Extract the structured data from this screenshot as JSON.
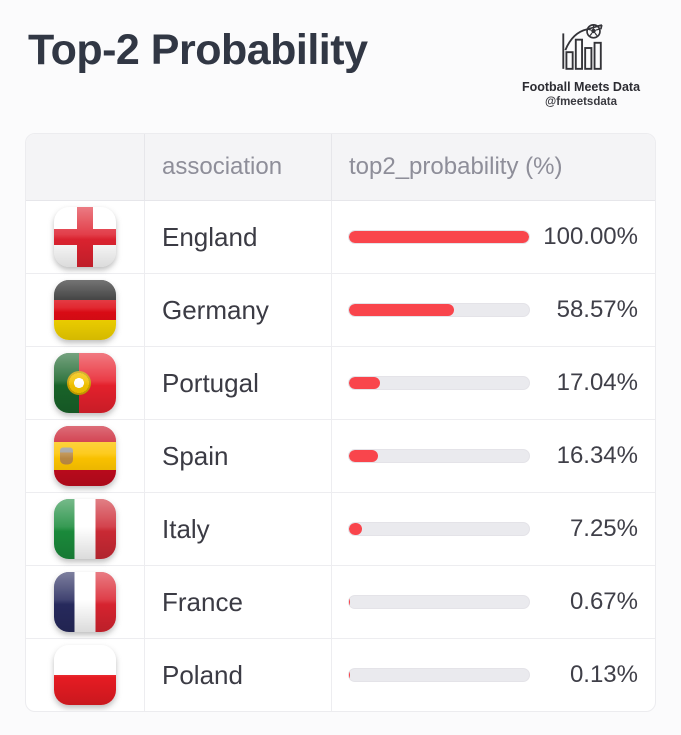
{
  "header": {
    "title": "Top-2 Probability",
    "brand": {
      "name": "Football Meets Data",
      "handle": "@fmeetsdata",
      "logo_icon": "bar-chart-football-icon"
    }
  },
  "table": {
    "columns": [
      "",
      "association",
      "top2_probability (%)"
    ],
    "rows": [
      {
        "association": "England",
        "flag": "england",
        "value": 100.0,
        "value_label": "100.00%"
      },
      {
        "association": "Germany",
        "flag": "germany",
        "value": 58.57,
        "value_label": "58.57%"
      },
      {
        "association": "Portugal",
        "flag": "portugal",
        "value": 17.04,
        "value_label": "17.04%"
      },
      {
        "association": "Spain",
        "flag": "spain",
        "value": 16.34,
        "value_label": "16.34%"
      },
      {
        "association": "Italy",
        "flag": "italy",
        "value": 7.25,
        "value_label": "7.25%"
      },
      {
        "association": "France",
        "flag": "france",
        "value": 0.67,
        "value_label": "0.67%"
      },
      {
        "association": "Poland",
        "flag": "poland",
        "value": 0.13,
        "value_label": "0.13%"
      }
    ]
  },
  "colors": {
    "bar_fill": "#f9454c",
    "bar_track": "#eaeaee",
    "header_bg": "#f4f4f6",
    "header_text": "#8e8e99",
    "title_text": "#313744"
  },
  "chart_data": {
    "type": "bar",
    "orientation": "horizontal",
    "title": "Top-2 Probability",
    "xlabel": "top2_probability (%)",
    "ylabel": "association",
    "categories": [
      "England",
      "Germany",
      "Portugal",
      "Spain",
      "Italy",
      "France",
      "Poland"
    ],
    "values": [
      100.0,
      58.57,
      17.04,
      16.34,
      7.25,
      0.67,
      0.13
    ],
    "value_labels": [
      "100.00%",
      "58.57%",
      "17.04%",
      "16.34%",
      "7.25%",
      "0.67%",
      "0.13%"
    ],
    "xlim": [
      0,
      100
    ],
    "grid": false,
    "legend": false
  }
}
